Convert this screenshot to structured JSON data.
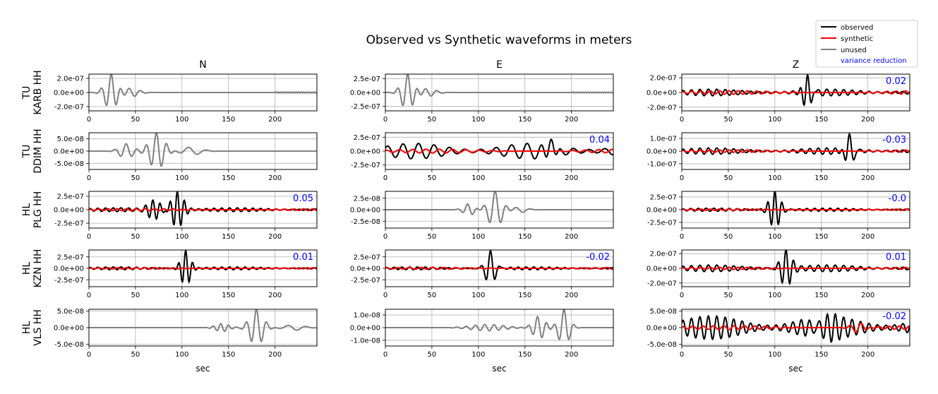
{
  "figure": {
    "title": "Observed vs Synthetic waveforms in meters",
    "xlabel": "sec",
    "columns": [
      "N",
      "E",
      "Z"
    ],
    "stations": [
      [
        "TU",
        "KARB HH"
      ],
      [
        "TU",
        "DDIM HH"
      ],
      [
        "HL",
        "PLG HH"
      ],
      [
        "HL",
        "KZN HH"
      ],
      [
        "HL",
        "VLS HH"
      ]
    ],
    "xticks": [
      0,
      50,
      100,
      150,
      200
    ]
  },
  "legend": {
    "location": "upper right",
    "entries": [
      {
        "label": "observed",
        "color": "#000000",
        "type": "line"
      },
      {
        "label": "synthetic",
        "color": "#ff0000",
        "type": "line"
      },
      {
        "label": "unused",
        "color": "#808080",
        "type": "line"
      },
      {
        "label": "variance reduction",
        "color": "#0000ff",
        "type": "text"
      }
    ]
  },
  "colors": {
    "observed": "#000000",
    "synthetic": "#ff0000",
    "unused": "#808080",
    "vr": "#0000ff",
    "grid": "#b0b0b0"
  },
  "chart_data": {
    "type": "line",
    "xlim": [
      0,
      245
    ],
    "panels": [
      {
        "row": 0,
        "col": 0,
        "status": "unused",
        "vr": "",
        "ylim": [
          -2.6e-07,
          2.6e-07
        ],
        "yticks": [
          -2e-07,
          0,
          2e-07
        ],
        "ytick_labels": [
          "-2.0e-07",
          "0.0e+00",
          "2.0e-07"
        ],
        "signal": {
          "t0": 0,
          "components": [
            {
              "a": 2.6e-07,
              "f": 0.09,
              "c": 24,
              "w": 9,
              "p": 0
            },
            {
              "a": 6e-08,
              "f": 0.08,
              "c": 45,
              "w": 12,
              "p": 1
            }
          ],
          "tail": {
            "a": 7e-09,
            "f": 0.4,
            "start": 200
          }
        }
      },
      {
        "row": 0,
        "col": 1,
        "status": "unused",
        "vr": "",
        "ylim": [
          -3.3e-07,
          3.3e-07
        ],
        "yticks": [
          -2.5e-07,
          0,
          2.5e-07
        ],
        "ytick_labels": [
          "-2.5e-07",
          "0.0e+00",
          "2.5e-07"
        ],
        "signal": {
          "t0": 0,
          "components": [
            {
              "a": 3.3e-07,
              "f": 0.09,
              "c": 24,
              "w": 9,
              "p": 0
            },
            {
              "a": 7e-08,
              "f": 0.08,
              "c": 45,
              "w": 12,
              "p": 1
            }
          ],
          "tail": {
            "a": 7e-09,
            "f": 0.4,
            "start": 200
          }
        }
      },
      {
        "row": 0,
        "col": 2,
        "status": "used",
        "vr": "0.02",
        "ylim": [
          -2.5e-07,
          2.5e-07
        ],
        "yticks": [
          -2e-07,
          0,
          2e-07
        ],
        "ytick_labels": [
          "-2.0e-07",
          "0.0e+00",
          "2.0e-07"
        ],
        "signal": {
          "t0": 0,
          "noise": {
            "a": 4.5e-08,
            "f": 0.11
          },
          "components": [
            {
              "a": 2.5e-07,
              "f": 0.12,
              "c": 135,
              "w": 6,
              "p": 0
            }
          ]
        },
        "synthetic": {
          "a": 2.5e-08,
          "f": 0.1
        }
      },
      {
        "row": 1,
        "col": 0,
        "status": "unused",
        "vr": "",
        "ylim": [
          -7.5e-08,
          7.5e-08
        ],
        "yticks": [
          -5e-08,
          0,
          5e-08
        ],
        "ytick_labels": [
          "-5.0e-08",
          "0.0e+00",
          "5.0e-08"
        ],
        "signal": {
          "t0": 0,
          "components": [
            {
              "a": 7.5e-08,
              "f": 0.09,
              "c": 73,
              "w": 11,
              "p": 0.3
            },
            {
              "a": 3e-08,
              "f": 0.08,
              "c": 40,
              "w": 10,
              "p": 0
            },
            {
              "a": 1.6e-08,
              "f": 0.05,
              "c": 110,
              "w": 14,
              "p": 1
            }
          ]
        }
      },
      {
        "row": 1,
        "col": 1,
        "status": "used",
        "vr": "0.04",
        "ylim": [
          -3.3e-07,
          3.3e-07
        ],
        "yticks": [
          -2.5e-07,
          0,
          2.5e-07
        ],
        "ytick_labels": [
          "-2.5e-07",
          "0.0e+00",
          "2.5e-07"
        ],
        "signal": {
          "t0": 0,
          "noise": {
            "a": 1.4e-07,
            "f": 0.06
          },
          "components": [
            {
              "a": 3.2e-07,
              "f": 0.07,
              "c": 178,
              "w": 7,
              "p": 0
            }
          ]
        },
        "synthetic": {
          "a": 3.5e-08,
          "f": 0.07
        }
      },
      {
        "row": 1,
        "col": 2,
        "status": "used",
        "vr": "-0.03",
        "ylim": [
          -1.45e-07,
          1.45e-07
        ],
        "yticks": [
          -1e-07,
          0,
          1e-07
        ],
        "ytick_labels": [
          "-1.0e-07",
          "0.0e+00",
          "1.0e-07"
        ],
        "signal": {
          "t0": 0,
          "noise": {
            "a": 2.5e-08,
            "f": 0.11
          },
          "components": [
            {
              "a": 1.45e-07,
              "f": 0.1,
              "c": 180,
              "w": 6,
              "p": 0
            }
          ]
        },
        "synthetic": {
          "a": 1e-08,
          "f": 0.1
        }
      },
      {
        "row": 2,
        "col": 0,
        "status": "used",
        "vr": "0.05",
        "ylim": [
          -3.4e-07,
          3.4e-07
        ],
        "yticks": [
          -2.5e-07,
          0,
          2.5e-07
        ],
        "ytick_labels": [
          "-2.5e-07",
          "0.0e+00",
          "2.5e-07"
        ],
        "signal": {
          "t0": 0,
          "noise": {
            "a": 3.5e-08,
            "f": 0.12
          },
          "components": [
            {
              "a": 3.4e-07,
              "f": 0.13,
              "c": 95,
              "w": 9,
              "p": 0
            },
            {
              "a": 1.7e-07,
              "f": 0.13,
              "c": 70,
              "w": 10,
              "p": 1
            }
          ]
        },
        "synthetic": {
          "a": 2e-08,
          "f": 0.1
        }
      },
      {
        "row": 2,
        "col": 1,
        "status": "unused",
        "vr": "",
        "ylim": [
          -4e-08,
          4e-08
        ],
        "yticks": [
          -2.5e-08,
          0,
          2.5e-08
        ],
        "ytick_labels": [
          "-2.5e-08",
          "0.0e+00",
          "2.5e-08"
        ],
        "signal": {
          "t0": 0,
          "components": [
            {
              "a": 4e-08,
              "f": 0.08,
              "c": 118,
              "w": 10,
              "p": 0
            },
            {
              "a": 1.3e-08,
              "f": 0.09,
              "c": 90,
              "w": 8,
              "p": 1
            },
            {
              "a": 6e-09,
              "f": 0.06,
              "c": 145,
              "w": 10,
              "p": 2
            }
          ]
        }
      },
      {
        "row": 2,
        "col": 2,
        "status": "used",
        "vr": "-0.0",
        "ylim": [
          -3.6e-07,
          3.6e-07
        ],
        "yticks": [
          -2.5e-07,
          0,
          2.5e-07
        ],
        "ytick_labels": [
          "-2.5e-07",
          "0.0e+00",
          "2.5e-07"
        ],
        "signal": {
          "t0": 0,
          "noise": {
            "a": 3e-08,
            "f": 0.12
          },
          "components": [
            {
              "a": 3.6e-07,
              "f": 0.13,
              "c": 100,
              "w": 8,
              "p": 0
            }
          ]
        },
        "synthetic": {
          "a": 1.5e-08,
          "f": 0.1
        }
      },
      {
        "row": 3,
        "col": 0,
        "status": "used",
        "vr": "0.01",
        "ylim": [
          -4e-07,
          4e-07
        ],
        "yticks": [
          -2.5e-07,
          0,
          2.5e-07
        ],
        "ytick_labels": [
          "-2.5e-07",
          "0.0e+00",
          "2.5e-07"
        ],
        "signal": {
          "t0": 0,
          "noise": {
            "a": 3e-08,
            "f": 0.12
          },
          "components": [
            {
              "a": 4e-07,
              "f": 0.13,
              "c": 104,
              "w": 7,
              "p": 0
            }
          ]
        },
        "synthetic": {
          "a": 1.5e-08,
          "f": 0.1
        }
      },
      {
        "row": 3,
        "col": 1,
        "status": "used",
        "vr": "-0.02",
        "ylim": [
          -4e-07,
          4e-07
        ],
        "yticks": [
          -2.5e-07,
          0,
          2.5e-07
        ],
        "ytick_labels": [
          "-2.5e-07",
          "0.0e+00",
          "2.5e-07"
        ],
        "signal": {
          "t0": 0,
          "noise": {
            "a": 3e-08,
            "f": 0.12
          },
          "components": [
            {
              "a": 4e-07,
              "f": 0.1,
              "c": 113,
              "w": 7,
              "p": 0
            }
          ]
        },
        "synthetic": {
          "a": 2e-08,
          "f": 0.08
        }
      },
      {
        "row": 3,
        "col": 2,
        "status": "used",
        "vr": "0.01",
        "ylim": [
          -2.5e-07,
          2.5e-07
        ],
        "yticks": [
          -2e-07,
          0,
          2e-07
        ],
        "ytick_labels": [
          "-2.0e-07",
          "0.0e+00",
          "2.0e-07"
        ],
        "signal": {
          "t0": 0,
          "noise": {
            "a": 4.5e-08,
            "f": 0.11
          },
          "components": [
            {
              "a": 2.5e-07,
              "f": 0.12,
              "c": 112,
              "w": 8,
              "p": 0
            }
          ]
        },
        "synthetic": {
          "a": 1.5e-08,
          "f": 0.1
        }
      },
      {
        "row": 4,
        "col": 0,
        "status": "unused",
        "vr": "",
        "ylim": [
          -5.5e-08,
          5.5e-08
        ],
        "yticks": [
          -5e-08,
          0,
          5e-08
        ],
        "ytick_labels": [
          "-5.0e-08",
          "0.0e+00",
          "5.0e-08"
        ],
        "signal": {
          "t0": 125,
          "components": [
            {
              "a": 5.5e-08,
              "f": 0.09,
              "c": 180,
              "w": 10,
              "p": 0
            },
            {
              "a": 1.2e-08,
              "f": 0.12,
              "c": 143,
              "w": 10,
              "p": 1
            },
            {
              "a": 8e-09,
              "f": 0.05,
              "c": 220,
              "w": 14,
              "p": 2
            }
          ]
        }
      },
      {
        "row": 4,
        "col": 1,
        "status": "unused",
        "vr": "",
        "ylim": [
          -1.45e-08,
          1.45e-08
        ],
        "yticks": [
          -1e-08,
          0,
          1e-08
        ],
        "ytick_labels": [
          "-1.0e-08",
          "0.0e+00",
          "1.0e-08"
        ],
        "signal": {
          "t0": 70,
          "components": [
            {
              "a": 1.45e-08,
              "f": 0.09,
              "c": 192,
              "w": 8,
              "p": 0
            },
            {
              "a": 9e-09,
              "f": 0.1,
              "c": 165,
              "w": 9,
              "p": 1
            },
            {
              "a": 2.5e-09,
              "f": 0.1,
              "c": 110,
              "w": 25,
              "p": 2
            }
          ]
        }
      },
      {
        "row": 4,
        "col": 2,
        "status": "used",
        "vr": "-0.02",
        "ylim": [
          -5.5e-08,
          5.5e-08
        ],
        "yticks": [
          -5e-08,
          0,
          5e-08
        ],
        "ytick_labels": [
          "-5.0e-08",
          "0.0e+00",
          "5.0e-08"
        ],
        "signal": {
          "t0": 0,
          "noise": {
            "a": 3.5e-08,
            "f": 0.11
          },
          "components": [
            {
              "a": 2e-08,
              "f": 0.13,
              "c": 150,
              "w": 15,
              "p": 0
            }
          ]
        },
        "synthetic": {
          "a": 6e-09,
          "f": 0.09,
          "bump": {
            "a": 1.5e-08,
            "c": 190,
            "w": 10
          }
        }
      }
    ]
  }
}
